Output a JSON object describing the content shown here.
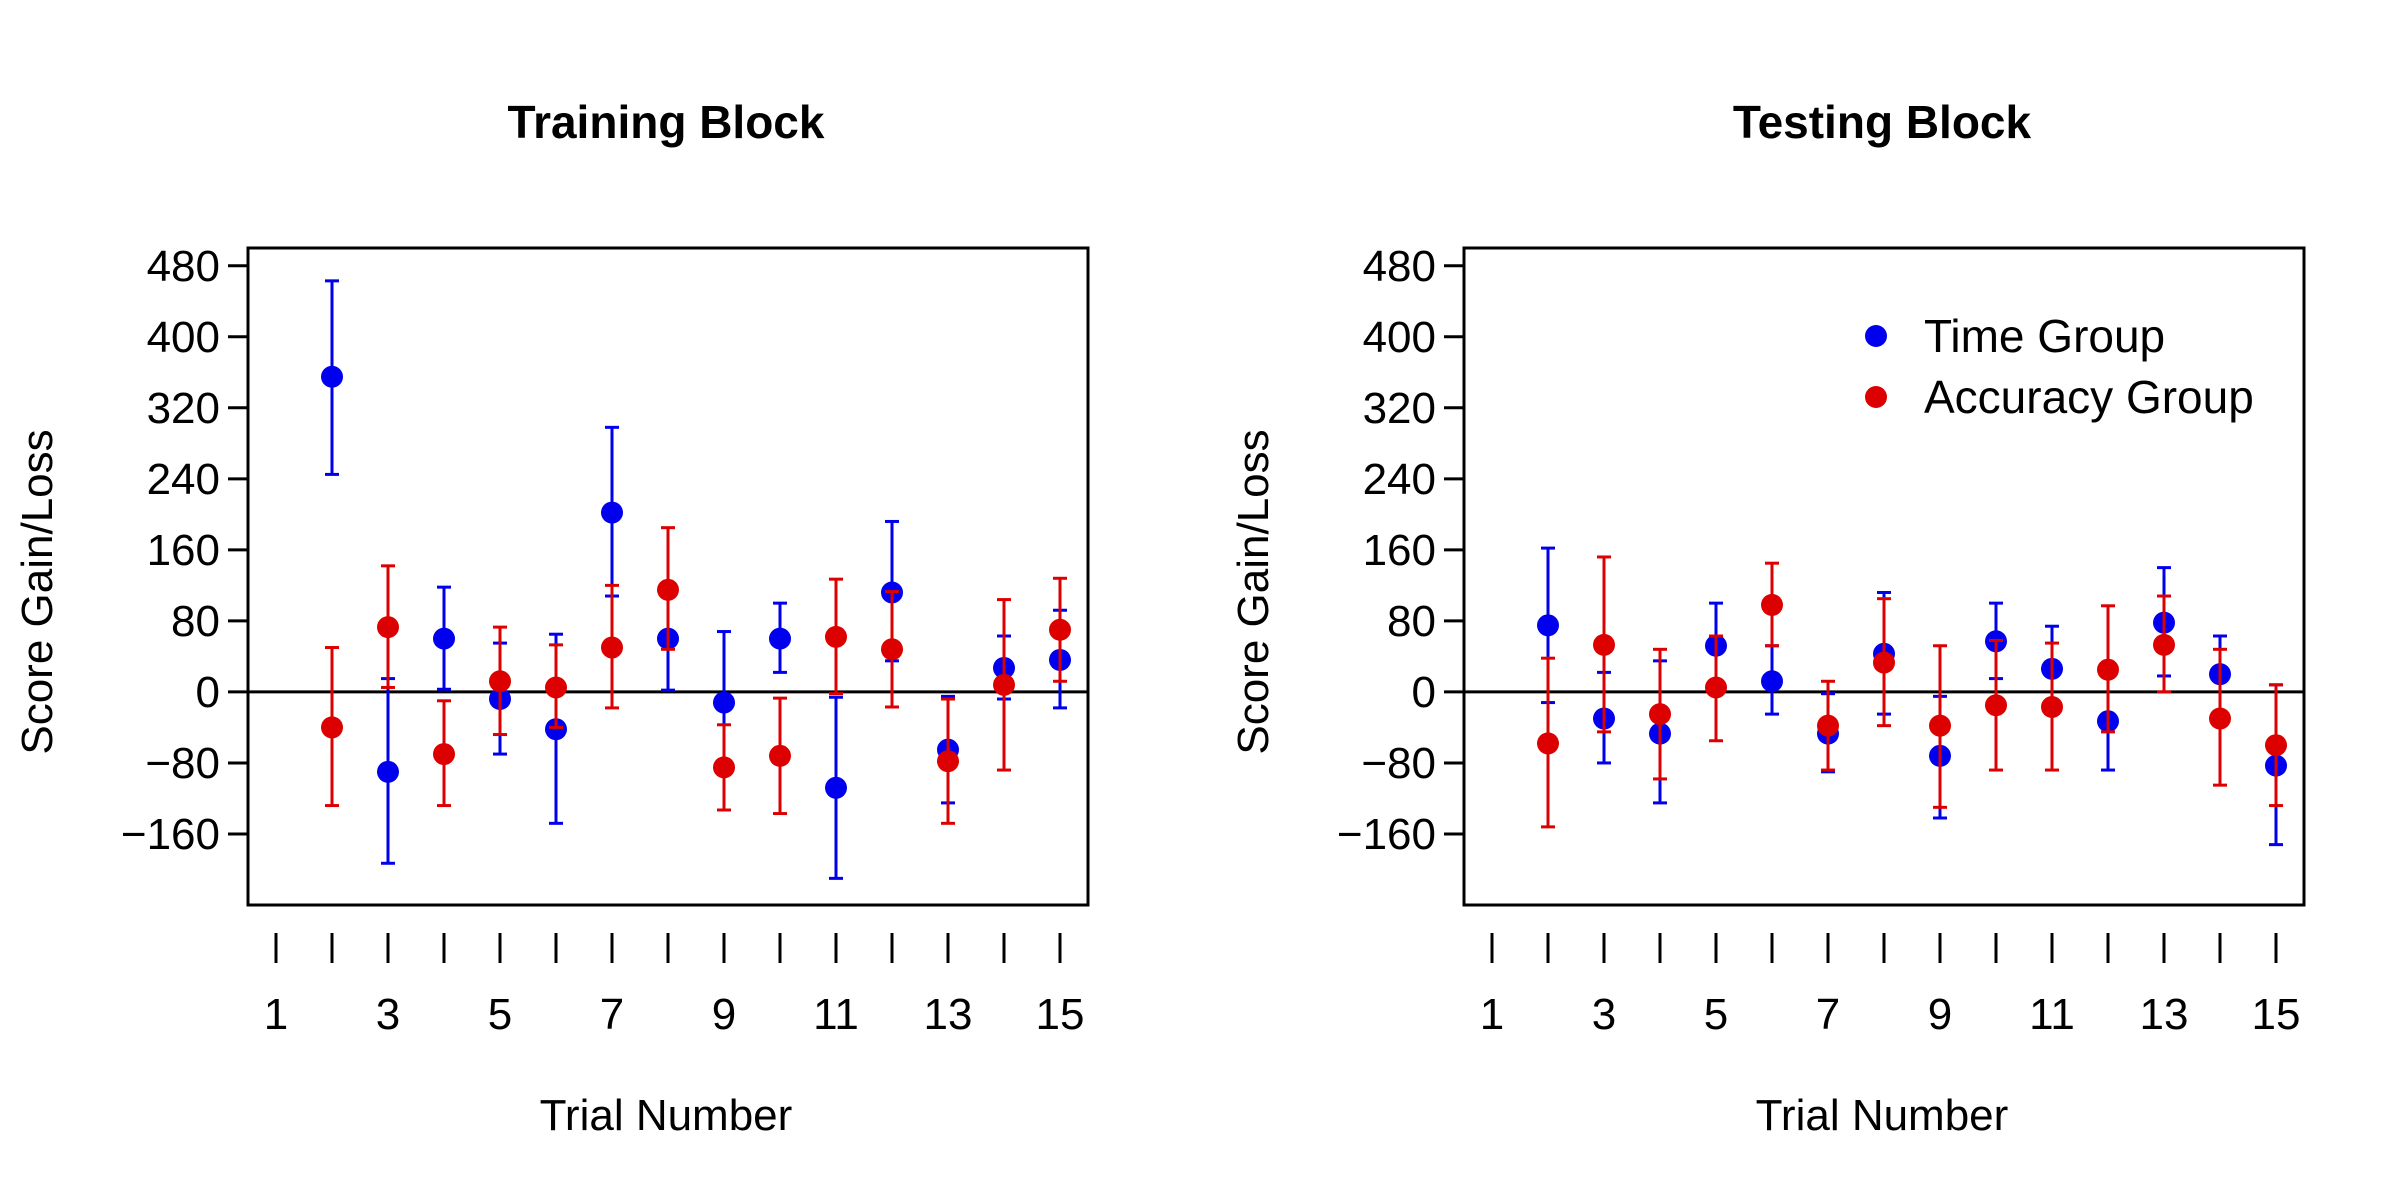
{
  "colors": {
    "time": "#0000ee",
    "accuracy": "#dd0000"
  },
  "legend": {
    "items": [
      {
        "label": "Time Group",
        "color": "#0000ee"
      },
      {
        "label": "Accuracy Group",
        "color": "#dd0000"
      }
    ],
    "placement": "top-right of Testing Block panel"
  },
  "chart_data": [
    {
      "type": "scatter",
      "title": "Training Block",
      "xlabel": "Trial Number",
      "ylabel": "Score Gain/Loss",
      "xlim": [
        0.5,
        15.5
      ],
      "ylim": [
        -240,
        500
      ],
      "x_ticks": [
        1,
        3,
        5,
        7,
        9,
        11,
        13,
        15
      ],
      "x_minor_ticks": [
        2,
        4,
        6,
        8,
        10,
        12,
        14
      ],
      "y_ticks": [
        -160,
        -80,
        0,
        80,
        160,
        240,
        320,
        400,
        480
      ],
      "y_tick_labels": [
        "−160",
        "−80",
        "0",
        "80",
        "160",
        "240",
        "320",
        "400",
        "480"
      ],
      "reference_line_y": 0,
      "legend": false,
      "series": [
        {
          "name": "Time Group",
          "color": "#0000ee",
          "points": [
            {
              "x": 2,
              "y": 355,
              "lo": 245,
              "hi": 463
            },
            {
              "x": 3,
              "y": -90,
              "lo": -193,
              "hi": 15
            },
            {
              "x": 4,
              "y": 60,
              "lo": 3,
              "hi": 118
            },
            {
              "x": 5,
              "y": -8,
              "lo": -70,
              "hi": 55
            },
            {
              "x": 6,
              "y": -42,
              "lo": -148,
              "hi": 65
            },
            {
              "x": 7,
              "y": 202,
              "lo": 108,
              "hi": 298
            },
            {
              "x": 8,
              "y": 60,
              "lo": 2,
              "hi": 118
            },
            {
              "x": 9,
              "y": -12,
              "lo": -90,
              "hi": 68
            },
            {
              "x": 10,
              "y": 60,
              "lo": 22,
              "hi": 100
            },
            {
              "x": 11,
              "y": -108,
              "lo": -210,
              "hi": -6
            },
            {
              "x": 12,
              "y": 112,
              "lo": 35,
              "hi": 192
            },
            {
              "x": 13,
              "y": -65,
              "lo": -125,
              "hi": -5
            },
            {
              "x": 14,
              "y": 27,
              "lo": -8,
              "hi": 63
            },
            {
              "x": 15,
              "y": 36,
              "lo": -18,
              "hi": 92
            }
          ]
        },
        {
          "name": "Accuracy Group",
          "color": "#dd0000",
          "points": [
            {
              "x": 2,
              "y": -40,
              "lo": -128,
              "hi": 50
            },
            {
              "x": 3,
              "y": 73,
              "lo": 5,
              "hi": 142
            },
            {
              "x": 4,
              "y": -70,
              "lo": -128,
              "hi": -10
            },
            {
              "x": 5,
              "y": 12,
              "lo": -48,
              "hi": 73
            },
            {
              "x": 6,
              "y": 5,
              "lo": -40,
              "hi": 53
            },
            {
              "x": 7,
              "y": 50,
              "lo": -18,
              "hi": 120
            },
            {
              "x": 8,
              "y": 115,
              "lo": 48,
              "hi": 185
            },
            {
              "x": 9,
              "y": -85,
              "lo": -133,
              "hi": -37
            },
            {
              "x": 10,
              "y": -72,
              "lo": -137,
              "hi": -7
            },
            {
              "x": 11,
              "y": 62,
              "lo": -2,
              "hi": 127
            },
            {
              "x": 12,
              "y": 48,
              "lo": -17,
              "hi": 113
            },
            {
              "x": 13,
              "y": -78,
              "lo": -148,
              "hi": -8
            },
            {
              "x": 14,
              "y": 8,
              "lo": -88,
              "hi": 104
            },
            {
              "x": 15,
              "y": 70,
              "lo": 12,
              "hi": 128
            }
          ]
        }
      ]
    },
    {
      "type": "scatter",
      "title": "Testing Block",
      "xlabel": "Trial Number",
      "ylabel": "Score Gain/Loss",
      "xlim": [
        0.5,
        15.5
      ],
      "ylim": [
        -240,
        500
      ],
      "x_ticks": [
        1,
        3,
        5,
        7,
        9,
        11,
        13,
        15
      ],
      "x_minor_ticks": [
        2,
        4,
        6,
        8,
        10,
        12,
        14
      ],
      "y_ticks": [
        -160,
        -80,
        0,
        80,
        160,
        240,
        320,
        400,
        480
      ],
      "y_tick_labels": [
        "−160",
        "−80",
        "0",
        "80",
        "160",
        "240",
        "320",
        "400",
        "480"
      ],
      "reference_line_y": 0,
      "legend": true,
      "series": [
        {
          "name": "Time Group",
          "color": "#0000ee",
          "points": [
            {
              "x": 2,
              "y": 75,
              "lo": -12,
              "hi": 162
            },
            {
              "x": 3,
              "y": -30,
              "lo": -80,
              "hi": 22
            },
            {
              "x": 4,
              "y": -47,
              "lo": -125,
              "hi": 35
            },
            {
              "x": 5,
              "y": 52,
              "lo": 5,
              "hi": 100
            },
            {
              "x": 6,
              "y": 12,
              "lo": -25,
              "hi": 52
            },
            {
              "x": 7,
              "y": -47,
              "lo": -90,
              "hi": -2
            },
            {
              "x": 8,
              "y": 43,
              "lo": -25,
              "hi": 112
            },
            {
              "x": 9,
              "y": -72,
              "lo": -142,
              "hi": -5
            },
            {
              "x": 10,
              "y": 57,
              "lo": 15,
              "hi": 100
            },
            {
              "x": 11,
              "y": 26,
              "lo": -20,
              "hi": 74
            },
            {
              "x": 12,
              "y": -33,
              "lo": -88,
              "hi": 22
            },
            {
              "x": 13,
              "y": 78,
              "lo": 18,
              "hi": 140
            },
            {
              "x": 14,
              "y": 20,
              "lo": -22,
              "hi": 63
            },
            {
              "x": 15,
              "y": -83,
              "lo": -172,
              "hi": 8
            }
          ]
        },
        {
          "name": "Accuracy Group",
          "color": "#dd0000",
          "points": [
            {
              "x": 2,
              "y": -58,
              "lo": -152,
              "hi": 38
            },
            {
              "x": 3,
              "y": 53,
              "lo": -45,
              "hi": 152
            },
            {
              "x": 4,
              "y": -25,
              "lo": -98,
              "hi": 48
            },
            {
              "x": 5,
              "y": 5,
              "lo": -55,
              "hi": 63
            },
            {
              "x": 6,
              "y": 98,
              "lo": 52,
              "hi": 145
            },
            {
              "x": 7,
              "y": -38,
              "lo": -88,
              "hi": 12
            },
            {
              "x": 8,
              "y": 33,
              "lo": -38,
              "hi": 105
            },
            {
              "x": 9,
              "y": -38,
              "lo": -130,
              "hi": 52
            },
            {
              "x": 10,
              "y": -15,
              "lo": -88,
              "hi": 58
            },
            {
              "x": 11,
              "y": -17,
              "lo": -88,
              "hi": 55
            },
            {
              "x": 12,
              "y": 25,
              "lo": -45,
              "hi": 97
            },
            {
              "x": 13,
              "y": 53,
              "lo": 0,
              "hi": 108
            },
            {
              "x": 14,
              "y": -30,
              "lo": -105,
              "hi": 48
            },
            {
              "x": 15,
              "y": -60,
              "lo": -128,
              "hi": 8
            }
          ]
        }
      ]
    }
  ]
}
